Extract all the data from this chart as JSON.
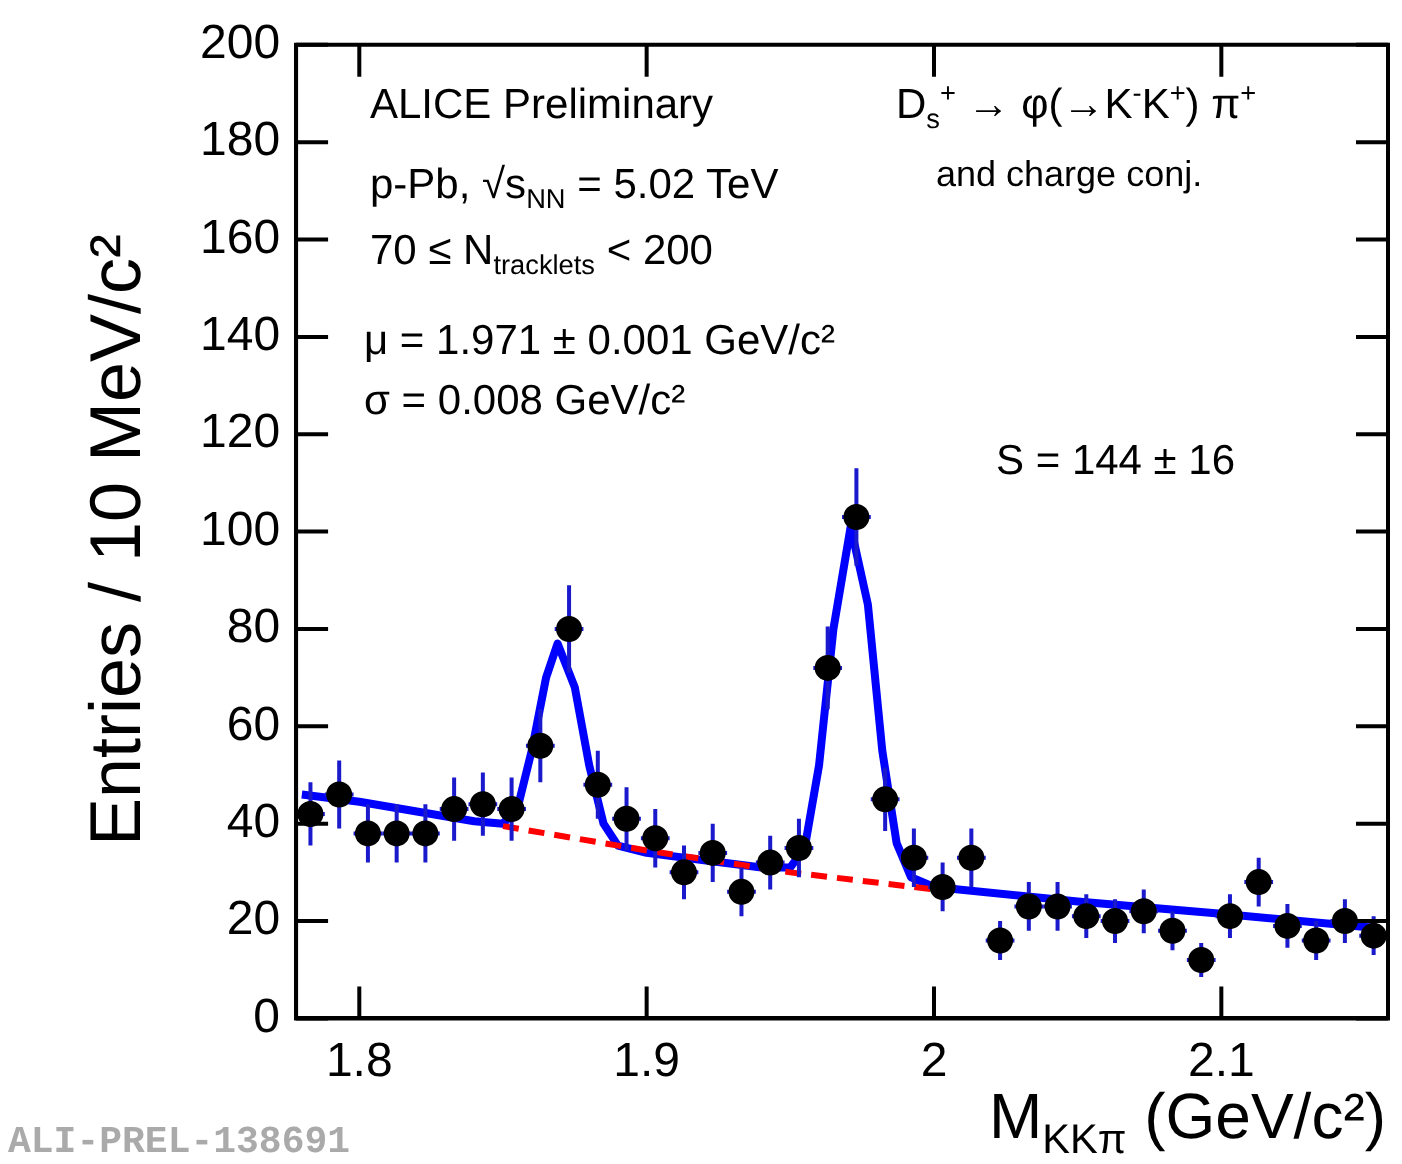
{
  "chart_data": {
    "type": "scatter",
    "xlabel": "M$_{KKπ}$ (GeV/c²)",
    "ylabel": "Entries / 10 MeV/c²",
    "xlim": [
      1.778,
      2.158
    ],
    "xticks": [
      1.8,
      1.9,
      2,
      2.1
    ],
    "ylim": [
      0,
      200
    ],
    "yticks": [
      0,
      20,
      40,
      60,
      80,
      100,
      120,
      140,
      160,
      180,
      200
    ],
    "grid": false,
    "legend": false,
    "series": [
      {
        "type": "line",
        "marker": "none",
        "color": "#0000ff",
        "line_style": "solid",
        "x": [
          1.78,
          1.8,
          1.82,
          1.84,
          1.85,
          1.855,
          1.86,
          1.865,
          1.869,
          1.875,
          1.88,
          1.885,
          1.89,
          1.9,
          1.92,
          1.94,
          1.95,
          1.955,
          1.96,
          1.965,
          1.971,
          1.977,
          1.982,
          1.987,
          1.992,
          2.0,
          2.05,
          2.1,
          2.155
        ],
        "values": [
          46,
          44.5,
          42.5,
          40.5,
          40,
          43,
          55,
          70,
          77,
          68,
          52,
          40,
          35.5,
          34,
          32.5,
          31,
          31,
          35,
          52,
          80,
          101,
          85,
          55,
          36,
          29,
          27,
          24,
          21.5,
          18.5
        ]
      },
      {
        "type": "line",
        "marker": "none",
        "color": "#ff0000",
        "line_style": "dashed",
        "x": [
          1.85,
          1.9,
          1.95,
          2.0
        ],
        "values": [
          39.5,
          34.5,
          30,
          26.5
        ]
      },
      {
        "marker": "circle",
        "color": "#000000",
        "x": [
          1.783,
          1.793,
          1.803,
          1.813,
          1.823,
          1.833,
          1.843,
          1.853,
          1.863,
          1.873,
          1.883,
          1.893,
          1.903,
          1.913,
          1.923,
          1.933,
          1.943,
          1.953,
          1.963,
          1.973,
          1.983,
          1.993,
          2.003,
          2.013,
          2.023,
          2.033,
          2.043,
          2.053,
          2.063,
          2.073,
          2.083,
          2.093,
          2.103,
          2.113,
          2.123,
          2.133,
          2.143,
          2.153
        ],
        "values": [
          42,
          46,
          38,
          38,
          38,
          43,
          44,
          43,
          56,
          80,
          48,
          41,
          37,
          30,
          34,
          26,
          32,
          35,
          72,
          103,
          45,
          33,
          27,
          33,
          16,
          23,
          23,
          21,
          20,
          22,
          18,
          12,
          21,
          28,
          19,
          16,
          20,
          17
        ],
        "errors": [
          6.5,
          7,
          6,
          6,
          6,
          6.5,
          6.5,
          6.5,
          7.5,
          9,
          7,
          6.5,
          6,
          5.5,
          6,
          5,
          5.5,
          6,
          8.5,
          10,
          6.5,
          6,
          5,
          6,
          4,
          5,
          5,
          4.5,
          4.5,
          4.5,
          4,
          3.5,
          4.5,
          5,
          4.5,
          4,
          4.5,
          4
        ],
        "xerrors": [
          0.005,
          0.005,
          0.005,
          0.005,
          0.005,
          0.005,
          0.005,
          0.005,
          0.005,
          0.005,
          0.005,
          0.005,
          0.005,
          0.005,
          0.005,
          0.005,
          0.005,
          0.005,
          0.005,
          0.005,
          0.005,
          0.005,
          0.005,
          0.005,
          0.005,
          0.005,
          0.005,
          0.005,
          0.005,
          0.005,
          0.005,
          0.005,
          0.005,
          0.005,
          0.005,
          0.005,
          0.005,
          0.005
        ]
      }
    ],
    "annotations": [
      "ALICE Preliminary",
      "p-Pb, √s$_{NN}$ = 5.02 TeV",
      "70 ≤ N$_{tracklets}$ < 200",
      "μ = 1.971 ± 0.001 GeV/c²",
      "σ = 0.008 GeV/c²",
      "D$_{s}$$^{+}$ → φ(→K$^{-}$K$^{+}$) π$^{+}$",
      "and charge conj.",
      "S = 144 ± 16",
      "ALI-PREL-138691"
    ]
  }
}
